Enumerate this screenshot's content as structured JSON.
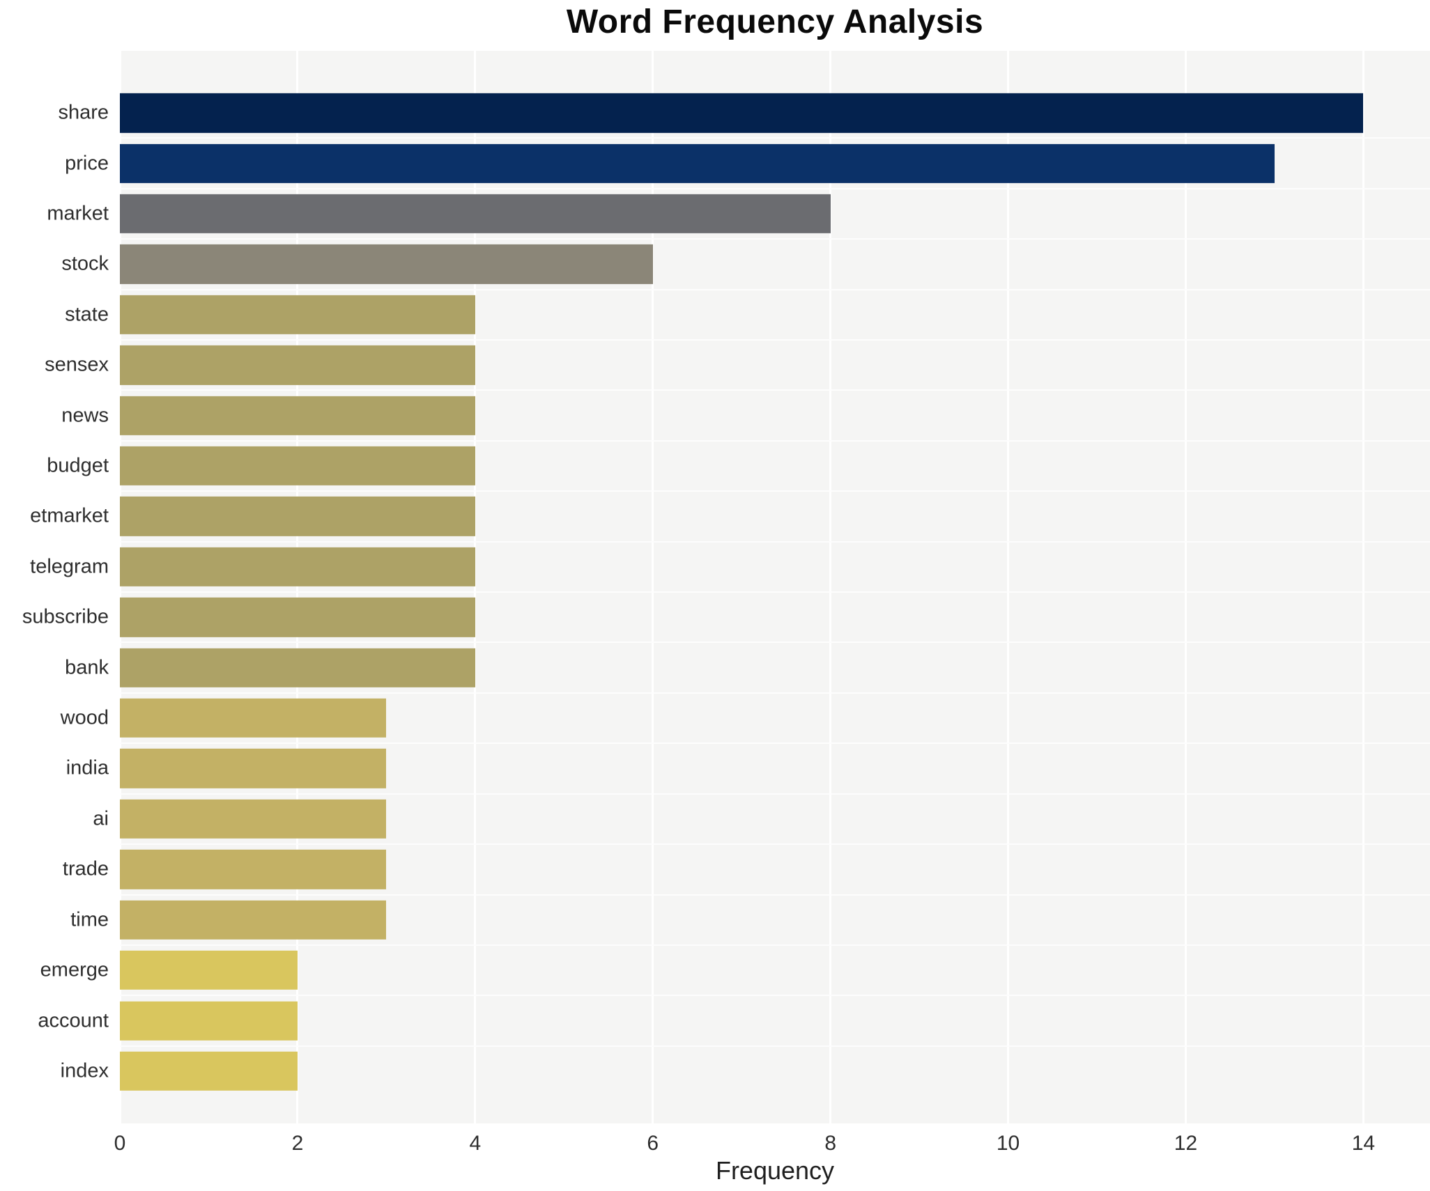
{
  "chart_data": {
    "type": "bar",
    "orientation": "horizontal",
    "title": "Word Frequency Analysis",
    "xlabel": "Frequency",
    "ylabel": "",
    "categories": [
      "share",
      "price",
      "market",
      "stock",
      "state",
      "sensex",
      "news",
      "budget",
      "etmarket",
      "telegram",
      "subscribe",
      "bank",
      "wood",
      "india",
      "ai",
      "trade",
      "time",
      "emerge",
      "account",
      "index"
    ],
    "values": [
      14,
      13,
      8,
      6,
      4,
      4,
      4,
      4,
      4,
      4,
      4,
      4,
      3,
      3,
      3,
      3,
      3,
      2,
      2,
      2
    ],
    "bar_colors": [
      "#04224e",
      "#0b3168",
      "#6b6c70",
      "#8b8678",
      "#ada266",
      "#ada266",
      "#ada266",
      "#ada266",
      "#ada266",
      "#ada266",
      "#ada266",
      "#ada266",
      "#c3b165",
      "#c3b165",
      "#c3b165",
      "#c3b165",
      "#c3b165",
      "#d9c65e",
      "#d9c65e",
      "#d9c65e"
    ],
    "xlim": [
      0,
      14.75
    ],
    "xticks": [
      0,
      2,
      4,
      6,
      8,
      10,
      12,
      14
    ],
    "grid": true,
    "legend": "none",
    "plot_background": "#f5f5f4",
    "gridline_color": "#ffffff",
    "label_color": "#2e2e2e"
  }
}
